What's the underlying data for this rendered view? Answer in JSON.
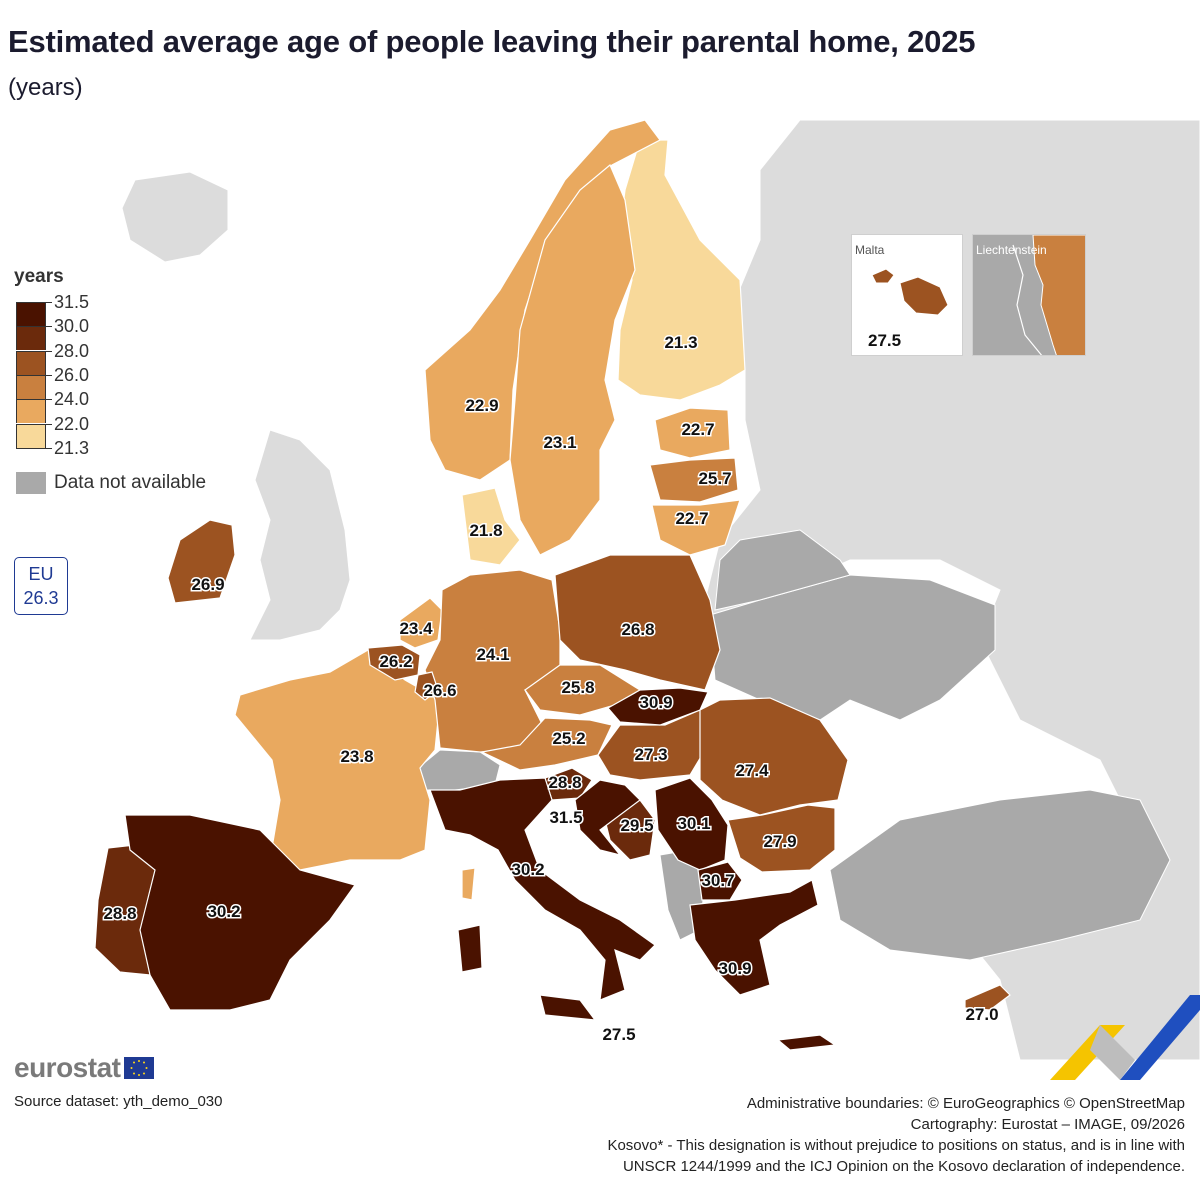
{
  "title": "Estimated average age of people leaving their parental home, 2025",
  "subtitle": "(years)",
  "legend": {
    "title": "years",
    "ticks": [
      "31.5",
      "30.0",
      "28.0",
      "26.0",
      "24.0",
      "22.0",
      "21.3"
    ],
    "classes": [
      {
        "range": "30.0 – 31.5",
        "color": "#4a1200"
      },
      {
        "range": "28.0 – 30.0",
        "color": "#6b2a0c"
      },
      {
        "range": "26.0 – 28.0",
        "color": "#9c5321"
      },
      {
        "range": "24.0 – 26.0",
        "color": "#c9803f"
      },
      {
        "range": "22.0 – 24.0",
        "color": "#e9a95f"
      },
      {
        "range": "21.3 – 22.0",
        "color": "#f8d99a"
      }
    ],
    "na_label": "Data not available",
    "na_color": "#a9a9a9"
  },
  "eu": {
    "label": "EU",
    "value": "26.3"
  },
  "insets": {
    "malta": {
      "name": "Malta",
      "value": "27.5",
      "color": "#9c5321"
    },
    "liechtenstein": {
      "name": "Liechtenstein",
      "color": "#c9803f"
    }
  },
  "chart_data": {
    "type": "choropleth",
    "regions": [
      {
        "name": "Finland",
        "value": 21.3
      },
      {
        "name": "Denmark",
        "value": 21.8
      },
      {
        "name": "Estonia",
        "value": 22.7
      },
      {
        "name": "Lithuania",
        "value": 22.7
      },
      {
        "name": "Norway",
        "value": 22.9
      },
      {
        "name": "Sweden",
        "value": 23.1
      },
      {
        "name": "Netherlands",
        "value": 23.4
      },
      {
        "name": "France",
        "value": 23.8
      },
      {
        "name": "Germany",
        "value": 24.1
      },
      {
        "name": "Austria",
        "value": 25.2
      },
      {
        "name": "Latvia",
        "value": 25.7
      },
      {
        "name": "Czechia",
        "value": 25.8
      },
      {
        "name": "Belgium",
        "value": 26.2
      },
      {
        "name": "Luxembourg",
        "value": 26.6
      },
      {
        "name": "Poland",
        "value": 26.8
      },
      {
        "name": "Ireland",
        "value": 26.9
      },
      {
        "name": "Cyprus",
        "value": 27.0
      },
      {
        "name": "Hungary",
        "value": 27.3
      },
      {
        "name": "Romania",
        "value": 27.4
      },
      {
        "name": "Malta",
        "value": 27.5
      },
      {
        "name": "Bulgaria",
        "value": 27.9
      },
      {
        "name": "Portugal",
        "value": 28.8
      },
      {
        "name": "Slovenia",
        "value": 28.8
      },
      {
        "name": "Bosnia and Herzegovina",
        "value": 29.5
      },
      {
        "name": "Serbia",
        "value": 30.1
      },
      {
        "name": "Spain",
        "value": 30.2
      },
      {
        "name": "Italy",
        "value": 30.2
      },
      {
        "name": "North Macedonia",
        "value": 30.7
      },
      {
        "name": "Slovakia",
        "value": 30.9
      },
      {
        "name": "Greece",
        "value": 30.9
      },
      {
        "name": "Croatia",
        "value": 31.5
      }
    ],
    "labels": [
      "21.3",
      "22.7",
      "25.7",
      "22.7",
      "22.9",
      "23.1",
      "21.8",
      "26.9",
      "23.4",
      "24.1",
      "26.8",
      "26.2",
      "26.6",
      "25.8",
      "30.9",
      "25.2",
      "27.3",
      "27.4",
      "23.8",
      "28.8",
      "31.5",
      "29.5",
      "30.1",
      "27.9",
      "30.2",
      "30.7",
      "28.8",
      "30.2",
      "30.9",
      "27.5",
      "27.0"
    ]
  },
  "brand": {
    "name": "eurostat"
  },
  "source": "Source dataset: yth_demo_030",
  "credits": [
    "Administrative boundaries: © EuroGeographics © OpenStreetMap",
    "Cartography: Eurostat – IMAGE, 09/2026",
    "Kosovo* - This designation is without prejudice to positions on status, and is in line with",
    "UNSCR 1244/1999 and the ICJ Opinion on the Kosovo declaration of independence."
  ]
}
